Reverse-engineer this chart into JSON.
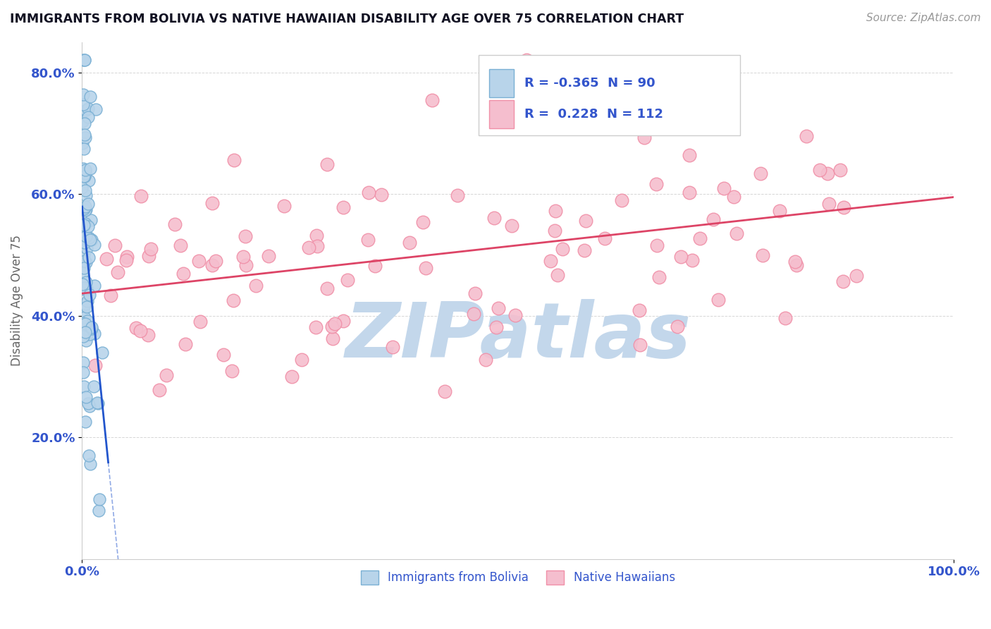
{
  "title": "IMMIGRANTS FROM BOLIVIA VS NATIVE HAWAIIAN DISABILITY AGE OVER 75 CORRELATION CHART",
  "source": "Source: ZipAtlas.com",
  "ylabel": "Disability Age Over 75",
  "legend_R1": "-0.365",
  "legend_N1": "90",
  "legend_R2": "0.228",
  "legend_N2": "112",
  "series1_color": "#b8d4ea",
  "series1_edge": "#7ab0d4",
  "series2_color": "#f5bece",
  "series2_edge": "#f090a8",
  "trend1_color": "#2255cc",
  "trend2_color": "#dd4466",
  "watermark": "ZIPatlas",
  "watermark_color_r": 195,
  "watermark_color_g": 215,
  "watermark_color_b": 235,
  "background_color": "#ffffff",
  "grid_color": "#cccccc",
  "title_color": "#111122",
  "axis_label_color": "#3355cc",
  "xlim": [
    0.0,
    100.0
  ],
  "ylim": [
    0.0,
    85.0
  ],
  "yticks": [
    20.0,
    40.0,
    60.0,
    80.0
  ],
  "R1": -0.365,
  "N1": 90,
  "R2": 0.228,
  "N2": 112
}
